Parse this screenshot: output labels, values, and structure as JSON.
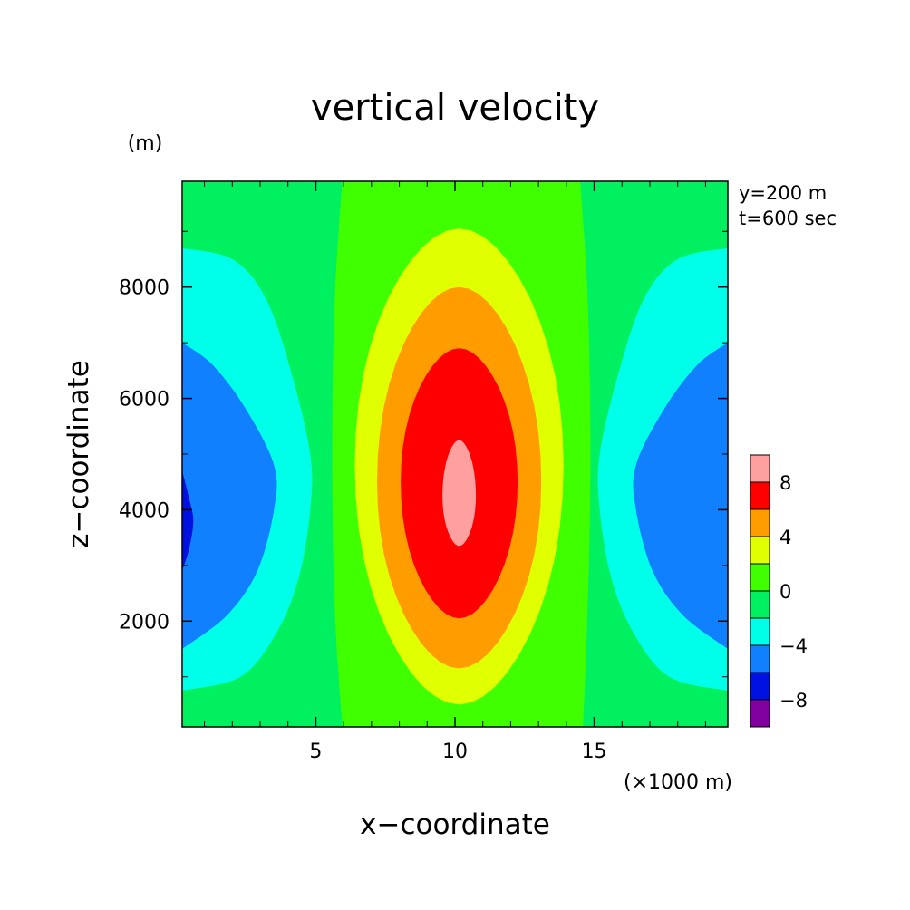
{
  "chart_data": {
    "type": "heatmap",
    "subtype": "filled-contour",
    "title": "vertical velocity",
    "xlabel": "x−coordinate",
    "ylabel": "z−coordinate",
    "x_unit": "(×1000 m)",
    "y_unit": "(m)",
    "annotations": [
      "y=200 m",
      "t=600 sec"
    ],
    "xlim": [
      0.2,
      19.8
    ],
    "ylim": [
      100,
      9900
    ],
    "x_ticks": [
      5,
      10,
      15
    ],
    "y_ticks": [
      2000,
      4000,
      6000,
      8000
    ],
    "colorbar": {
      "levels": [
        -10,
        -8,
        -6,
        -4,
        -2,
        0,
        2,
        4,
        6,
        8,
        10
      ],
      "tick_labels": [
        "−8",
        "−4",
        "0",
        "4",
        "8"
      ],
      "tick_values": [
        -8,
        -4,
        0,
        4,
        8
      ],
      "colors": [
        "#8000a0",
        "#0010e0",
        "#1080ff",
        "#00ffe8",
        "#00f060",
        "#40ff00",
        "#e0ff00",
        "#ff9c00",
        "#ff0000",
        "#ffa0a0"
      ]
    },
    "contours": [
      {
        "level": -2,
        "color": "#00ffe8",
        "sides": [
          {
            "side": "left",
            "points": [
              [
                0.2,
                8700
              ],
              [
                2.0,
                8500
              ],
              [
                3.2,
                7800
              ],
              [
                4.1,
                6500
              ],
              [
                4.8,
                5000
              ],
              [
                4.8,
                4000
              ],
              [
                4.4,
                2800
              ],
              [
                3.6,
                1800
              ],
              [
                2.3,
                1000
              ],
              [
                0.2,
                750
              ]
            ]
          },
          {
            "side": "right",
            "points": [
              [
                19.8,
                8700
              ],
              [
                18.0,
                8500
              ],
              [
                16.8,
                7800
              ],
              [
                15.9,
                6500
              ],
              [
                15.2,
                5000
              ],
              [
                15.2,
                4000
              ],
              [
                15.6,
                2800
              ],
              [
                16.4,
                1800
              ],
              [
                17.7,
                1000
              ],
              [
                19.8,
                750
              ]
            ]
          }
        ]
      },
      {
        "level": -4,
        "color": "#1080ff",
        "sides": [
          {
            "side": "left",
            "points": [
              [
                0.2,
                7000
              ],
              [
                1.3,
                6600
              ],
              [
                2.5,
                5800
              ],
              [
                3.5,
                4800
              ],
              [
                3.5,
                4000
              ],
              [
                2.9,
                2900
              ],
              [
                1.8,
                2100
              ],
              [
                0.2,
                1500
              ]
            ]
          },
          {
            "side": "right",
            "points": [
              [
                19.8,
                7000
              ],
              [
                18.7,
                6600
              ],
              [
                17.5,
                5800
              ],
              [
                16.5,
                4800
              ],
              [
                16.5,
                4000
              ],
              [
                17.1,
                2900
              ],
              [
                18.2,
                2100
              ],
              [
                19.8,
                1500
              ]
            ]
          }
        ]
      },
      {
        "level": -6,
        "color": "#0010e0",
        "sides": [
          {
            "side": "left",
            "points": [
              [
                0.2,
                4700
              ],
              [
                0.45,
                4200
              ],
              [
                0.6,
                3800
              ],
              [
                0.45,
                3300
              ],
              [
                0.2,
                2900
              ]
            ]
          }
        ]
      },
      {
        "level": 0,
        "color": "#40ff00",
        "band": [
          [
            5.95,
            9900
          ],
          [
            5.7,
            8000
          ],
          [
            5.6,
            6000
          ],
          [
            5.6,
            4000
          ],
          [
            5.7,
            2000
          ],
          [
            5.95,
            100
          ],
          [
            14.6,
            100
          ],
          [
            14.75,
            2000
          ],
          [
            14.85,
            4000
          ],
          [
            14.85,
            6000
          ],
          [
            14.75,
            8000
          ],
          [
            14.5,
            9900
          ]
        ]
      },
      {
        "level": 2,
        "color": "#e0ff00",
        "center": [
          10.15,
          4800
        ],
        "rx": 3.75,
        "ry_top": 4250,
        "ry_bottom": 4300
      },
      {
        "level": 4,
        "color": "#ff9c00",
        "center": [
          10.15,
          4500
        ],
        "rx": 2.95,
        "ry_top": 3500,
        "ry_bottom": 3350
      },
      {
        "level": 6,
        "color": "#ff0000",
        "center": [
          10.15,
          4500
        ],
        "rx": 2.1,
        "ry_top": 2400,
        "ry_bottom": 2450
      },
      {
        "level": 8,
        "color": "#ffa0a0",
        "center": [
          10.15,
          4250
        ],
        "rx": 0.6,
        "ry_top": 1000,
        "ry_bottom": 900
      }
    ],
    "background_level": {
      "level": -2,
      "color": "#00f060"
    }
  }
}
